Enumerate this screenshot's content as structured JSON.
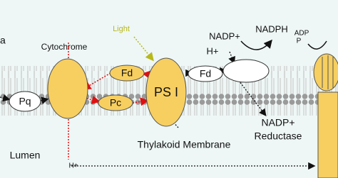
{
  "labels": {
    "stroma_partial": "a",
    "cytochrome": "Cytochrome",
    "light": "Light",
    "nadp_in": "NADP+",
    "nadph": "NADPH",
    "adp": "ADP",
    "p": "P",
    "h_top": "H+",
    "lumen": "Lumen",
    "h_bottom": "H+",
    "membrane": "Thylakoid Membrane",
    "reductase_line1": "NADP+",
    "reductase_line2": "Reductase"
  },
  "nodes": [
    {
      "label": "Pq"
    },
    {
      "label": "Fd"
    },
    {
      "label": "Pc"
    },
    {
      "label": "PS I"
    },
    {
      "label": "Fd"
    }
  ]
}
